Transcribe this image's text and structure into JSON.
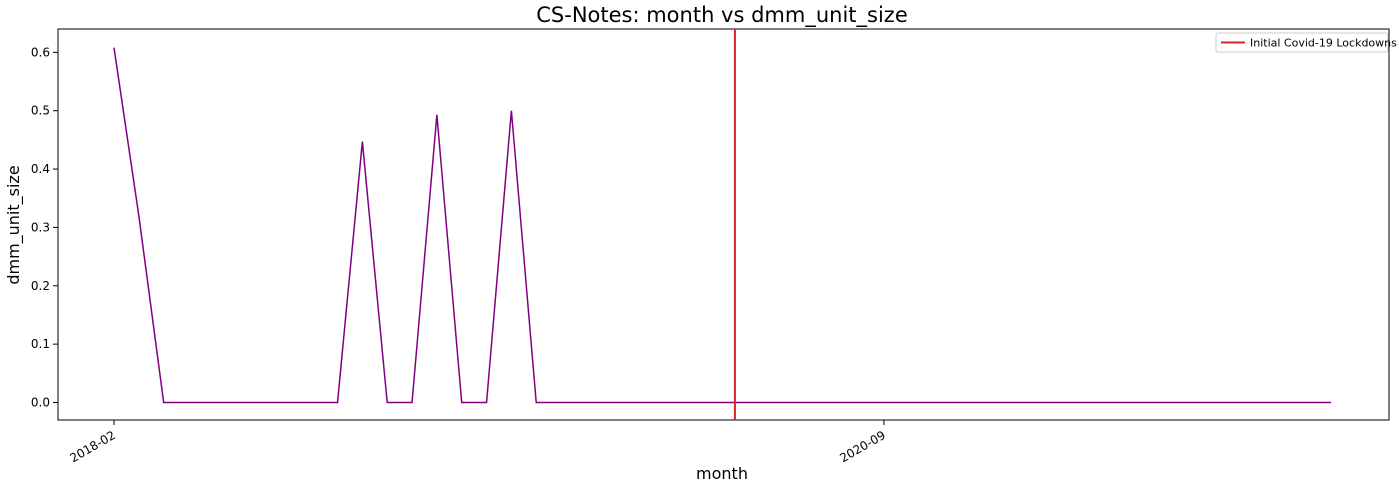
{
  "chart_data": {
    "type": "line",
    "title": "CS-Notes: month vs dmm_unit_size",
    "xlabel": "month",
    "ylabel": "dmm_unit_size",
    "x_tick_labels": [
      "2018-02",
      "2020-09"
    ],
    "y_ticks": [
      0.0,
      0.1,
      0.2,
      0.3,
      0.4,
      0.5,
      0.6
    ],
    "ylim": [
      -0.03,
      0.64
    ],
    "grid": false,
    "legend_position": "top-right",
    "series": [
      {
        "color": "#800080",
        "x": [
          "2018-02",
          "2018-03",
          "2018-04",
          "2018-05",
          "2018-06",
          "2018-07",
          "2018-08",
          "2018-09",
          "2018-10",
          "2018-11",
          "2018-12",
          "2019-01",
          "2019-02",
          "2019-03",
          "2019-04",
          "2019-05",
          "2019-06",
          "2019-07",
          "2019-08",
          "2019-09",
          "2019-10",
          "2019-11",
          "2019-12",
          "2020-01",
          "2020-02",
          "2020-03",
          "2020-04",
          "2020-05",
          "2020-06",
          "2020-07",
          "2020-08",
          "2020-09",
          "2020-10",
          "2020-11",
          "2020-12",
          "2021-01",
          "2021-02",
          "2021-03",
          "2021-04",
          "2021-05",
          "2021-06",
          "2021-07",
          "2021-08",
          "2021-09",
          "2021-10",
          "2021-11",
          "2021-12",
          "2022-01",
          "2022-02",
          "2022-03"
        ],
        "values": [
          0.608,
          0.32,
          0.0,
          0.0,
          0.0,
          0.0,
          0.0,
          0.0,
          0.0,
          0.0,
          0.447,
          0.0,
          0.0,
          0.493,
          0.0,
          0.0,
          0.5,
          0.0,
          0.0,
          0.0,
          0.0,
          0.0,
          0.0,
          0.0,
          0.0,
          0.0,
          0.0,
          0.0,
          0.0,
          0.0,
          0.0,
          0.0,
          0.0,
          0.0,
          0.0,
          0.0,
          0.0,
          0.0,
          0.0,
          0.0,
          0.0,
          0.0,
          0.0,
          0.0,
          0.0,
          0.0,
          0.0,
          0.0,
          0.0,
          0.0
        ]
      }
    ],
    "vline": {
      "x": "2020-03",
      "color": "#d62728",
      "label": "Initial Covid-19 Lockdowns"
    }
  }
}
